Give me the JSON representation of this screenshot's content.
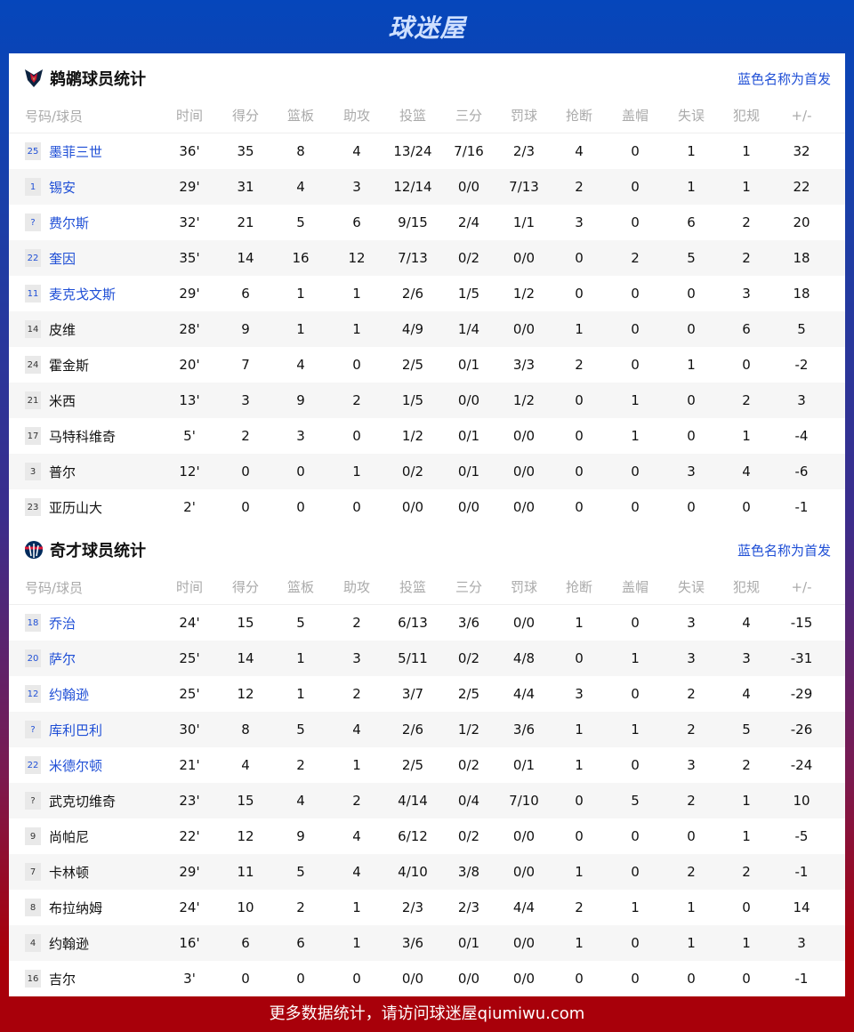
{
  "brand": "球迷屋",
  "footer": "更多数据统计，请访问球迷屋qiumiwu.com",
  "colors": {
    "starter": "#1f4fd6",
    "header_top": "#0546bb",
    "footer_bg": "#a8000a"
  },
  "columns": [
    "号码/球员",
    "时间",
    "得分",
    "篮板",
    "助攻",
    "投篮",
    "三分",
    "罚球",
    "抢断",
    "盖帽",
    "失误",
    "犯规",
    "+/-"
  ],
  "teams": [
    {
      "title": "鹈鹕球员统计",
      "note": "蓝色名称为首发",
      "icon": "pelicans-logo-icon",
      "players": [
        {
          "num": "25",
          "name": "墨菲三世",
          "starter": true,
          "stats": [
            "36'",
            "35",
            "8",
            "4",
            "13/24",
            "7/16",
            "2/3",
            "4",
            "0",
            "1",
            "1",
            "32"
          ]
        },
        {
          "num": "1",
          "name": "锡安",
          "starter": true,
          "stats": [
            "29'",
            "31",
            "4",
            "3",
            "12/14",
            "0/0",
            "7/13",
            "2",
            "0",
            "1",
            "1",
            "22"
          ]
        },
        {
          "num": "?",
          "name": "费尔斯",
          "starter": true,
          "stats": [
            "32'",
            "21",
            "5",
            "6",
            "9/15",
            "2/4",
            "1/1",
            "3",
            "0",
            "6",
            "2",
            "20"
          ]
        },
        {
          "num": "22",
          "name": "奎因",
          "starter": true,
          "stats": [
            "35'",
            "14",
            "16",
            "12",
            "7/13",
            "0/2",
            "0/0",
            "0",
            "2",
            "5",
            "2",
            "18"
          ]
        },
        {
          "num": "11",
          "name": "麦克戈文斯",
          "starter": true,
          "stats": [
            "29'",
            "6",
            "1",
            "1",
            "2/6",
            "1/5",
            "1/2",
            "0",
            "0",
            "0",
            "3",
            "18"
          ]
        },
        {
          "num": "14",
          "name": "皮维",
          "starter": false,
          "stats": [
            "28'",
            "9",
            "1",
            "1",
            "4/9",
            "1/4",
            "0/0",
            "1",
            "0",
            "0",
            "6",
            "5"
          ]
        },
        {
          "num": "24",
          "name": "霍金斯",
          "starter": false,
          "stats": [
            "20'",
            "7",
            "4",
            "0",
            "2/5",
            "0/1",
            "3/3",
            "2",
            "0",
            "1",
            "0",
            "-2"
          ]
        },
        {
          "num": "21",
          "name": "米西",
          "starter": false,
          "stats": [
            "13'",
            "3",
            "9",
            "2",
            "1/5",
            "0/0",
            "1/2",
            "0",
            "1",
            "0",
            "2",
            "3"
          ]
        },
        {
          "num": "17",
          "name": "马特科维奇",
          "starter": false,
          "stats": [
            "5'",
            "2",
            "3",
            "0",
            "1/2",
            "0/1",
            "0/0",
            "0",
            "1",
            "0",
            "1",
            "-4"
          ]
        },
        {
          "num": "3",
          "name": "普尔",
          "starter": false,
          "stats": [
            "12'",
            "0",
            "0",
            "1",
            "0/2",
            "0/1",
            "0/0",
            "0",
            "0",
            "3",
            "4",
            "-6"
          ]
        },
        {
          "num": "23",
          "name": "亚历山大",
          "starter": false,
          "stats": [
            "2'",
            "0",
            "0",
            "0",
            "0/0",
            "0/0",
            "0/0",
            "0",
            "0",
            "0",
            "0",
            "-1"
          ]
        }
      ]
    },
    {
      "title": "奇才球员统计",
      "note": "蓝色名称为首发",
      "icon": "wizards-logo-icon",
      "players": [
        {
          "num": "18",
          "name": "乔治",
          "starter": true,
          "stats": [
            "24'",
            "15",
            "5",
            "2",
            "6/13",
            "3/6",
            "0/0",
            "1",
            "0",
            "3",
            "4",
            "-15"
          ]
        },
        {
          "num": "20",
          "name": "萨尔",
          "starter": true,
          "stats": [
            "25'",
            "14",
            "1",
            "3",
            "5/11",
            "0/2",
            "4/8",
            "0",
            "1",
            "3",
            "3",
            "-31"
          ]
        },
        {
          "num": "12",
          "name": "约翰逊",
          "starter": true,
          "stats": [
            "25'",
            "12",
            "1",
            "2",
            "3/7",
            "2/5",
            "4/4",
            "3",
            "0",
            "2",
            "4",
            "-29"
          ]
        },
        {
          "num": "?",
          "name": "库利巴利",
          "starter": true,
          "stats": [
            "30'",
            "8",
            "5",
            "4",
            "2/6",
            "1/2",
            "3/6",
            "1",
            "1",
            "2",
            "5",
            "-26"
          ]
        },
        {
          "num": "22",
          "name": "米德尔顿",
          "starter": true,
          "stats": [
            "21'",
            "4",
            "2",
            "1",
            "2/5",
            "0/2",
            "0/1",
            "1",
            "0",
            "3",
            "2",
            "-24"
          ]
        },
        {
          "num": "?",
          "name": "武克切维奇",
          "starter": false,
          "stats": [
            "23'",
            "15",
            "4",
            "2",
            "4/14",
            "0/4",
            "7/10",
            "0",
            "5",
            "2",
            "1",
            "10"
          ]
        },
        {
          "num": "9",
          "name": "尚帕尼",
          "starter": false,
          "stats": [
            "22'",
            "12",
            "9",
            "4",
            "6/12",
            "0/2",
            "0/0",
            "0",
            "0",
            "0",
            "1",
            "-5"
          ]
        },
        {
          "num": "7",
          "name": "卡林顿",
          "starter": false,
          "stats": [
            "29'",
            "11",
            "5",
            "4",
            "4/10",
            "3/8",
            "0/0",
            "1",
            "0",
            "2",
            "2",
            "-1"
          ]
        },
        {
          "num": "8",
          "name": "布拉纳姆",
          "starter": false,
          "stats": [
            "24'",
            "10",
            "2",
            "1",
            "2/3",
            "2/3",
            "4/4",
            "2",
            "1",
            "1",
            "0",
            "14"
          ]
        },
        {
          "num": "4",
          "name": "约翰逊",
          "starter": false,
          "stats": [
            "16'",
            "6",
            "6",
            "1",
            "3/6",
            "0/1",
            "0/0",
            "1",
            "0",
            "1",
            "1",
            "3"
          ]
        },
        {
          "num": "16",
          "name": "吉尔",
          "starter": false,
          "stats": [
            "3'",
            "0",
            "0",
            "0",
            "0/0",
            "0/0",
            "0/0",
            "0",
            "0",
            "0",
            "0",
            "-1"
          ]
        }
      ]
    }
  ]
}
